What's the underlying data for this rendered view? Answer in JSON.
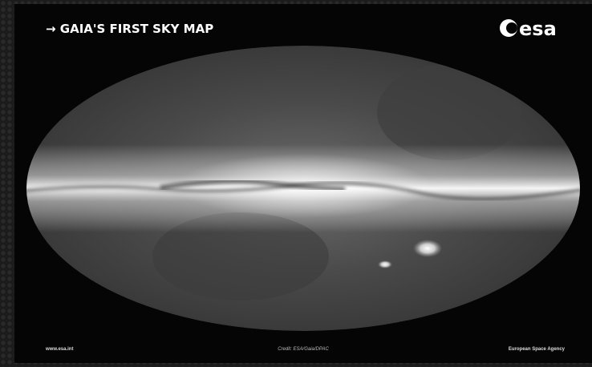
{
  "header": {
    "title": "→ GAIA'S FIRST SKY MAP",
    "logo": "esa"
  },
  "footer": {
    "left": "www.esa.int",
    "center": "Credit: ESA/Gaia/DPAC",
    "right": "European Space Agency"
  }
}
